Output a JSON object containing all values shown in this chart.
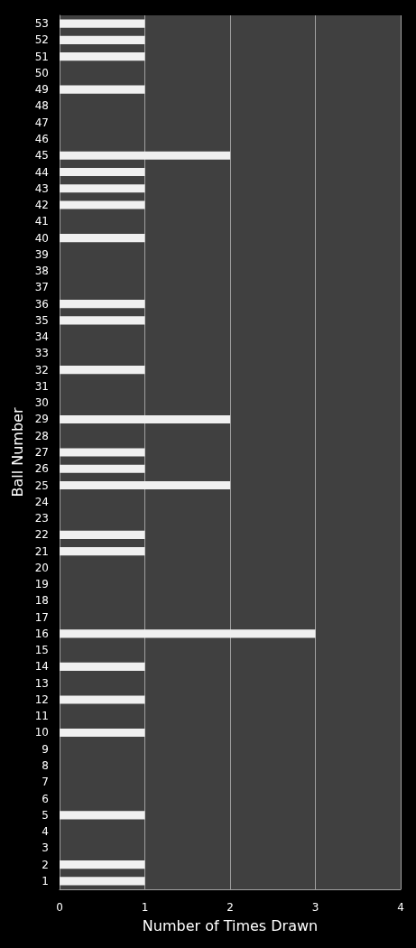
{
  "chart_data": {
    "type": "bar",
    "orientation": "horizontal",
    "xlabel": "Number of Times Drawn",
    "ylabel": "Ball Number",
    "categories": [
      "53",
      "52",
      "51",
      "50",
      "49",
      "48",
      "47",
      "46",
      "45",
      "44",
      "43",
      "42",
      "41",
      "40",
      "39",
      "38",
      "37",
      "36",
      "35",
      "34",
      "33",
      "32",
      "31",
      "30",
      "29",
      "28",
      "27",
      "26",
      "25",
      "24",
      "23",
      "22",
      "21",
      "20",
      "19",
      "18",
      "17",
      "16",
      "15",
      "14",
      "13",
      "12",
      "11",
      "10",
      "9",
      "8",
      "7",
      "6",
      "5",
      "4",
      "3",
      "2",
      "1"
    ],
    "values": [
      1,
      1,
      1,
      0,
      1,
      0,
      0,
      0,
      2,
      1,
      1,
      1,
      0,
      1,
      0,
      0,
      0,
      1,
      1,
      0,
      0,
      1,
      0,
      0,
      2,
      0,
      1,
      1,
      2,
      0,
      0,
      1,
      1,
      0,
      0,
      0,
      0,
      3,
      0,
      1,
      0,
      1,
      0,
      1,
      0,
      0,
      0,
      0,
      1,
      0,
      0,
      1,
      1
    ],
    "color": "#f0f0f0",
    "xlim": [
      0,
      4
    ],
    "xticks": [
      0,
      1,
      2,
      3,
      4
    ],
    "grid": "x"
  }
}
